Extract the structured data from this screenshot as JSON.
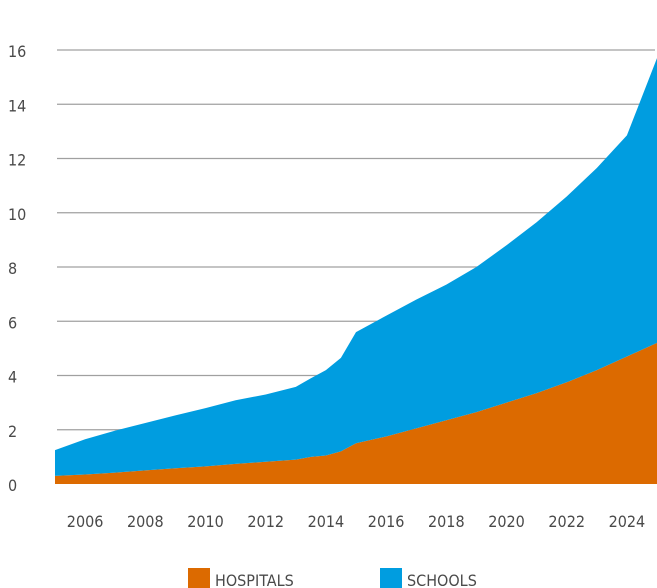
{
  "chart_data": {
    "type": "area",
    "stacked": true,
    "x": [
      2005,
      2006,
      2007,
      2008,
      2009,
      2010,
      2011,
      2012,
      2013,
      2013.5,
      2014,
      2014.5,
      2015,
      2016,
      2017,
      2018,
      2019,
      2020,
      2021,
      2022,
      2023,
      2024,
      2025
    ],
    "series": [
      {
        "name": "HOSPITALS",
        "color": "#dc6a00",
        "values": [
          0.3,
          0.35,
          0.42,
          0.5,
          0.58,
          0.65,
          0.74,
          0.82,
          0.9,
          1.0,
          1.05,
          1.2,
          1.5,
          1.75,
          2.05,
          2.35,
          2.65,
          3.0,
          3.35,
          3.75,
          4.2,
          4.7,
          5.2
        ]
      },
      {
        "name": "SCHOOLS",
        "color": "#009de0",
        "values": [
          0.95,
          1.3,
          1.55,
          1.75,
          1.95,
          2.15,
          2.35,
          2.48,
          2.68,
          2.9,
          3.15,
          3.45,
          4.1,
          4.45,
          4.75,
          5.0,
          5.35,
          5.8,
          6.3,
          6.85,
          7.45,
          8.15,
          10.5
        ]
      }
    ],
    "x_ticks": [
      "2006",
      "2008",
      "2010",
      "2012",
      "2014",
      "2016",
      "2018",
      "2020",
      "2022",
      "2024"
    ],
    "y_ticks": [
      "0",
      "2",
      "4",
      "6",
      "8",
      "10",
      "12",
      "14",
      "16"
    ],
    "ylim": [
      0,
      16
    ],
    "xlim": [
      2005,
      2025
    ],
    "grid": true,
    "legend_position": "bottom",
    "title": "",
    "xlabel": "",
    "ylabel": ""
  }
}
